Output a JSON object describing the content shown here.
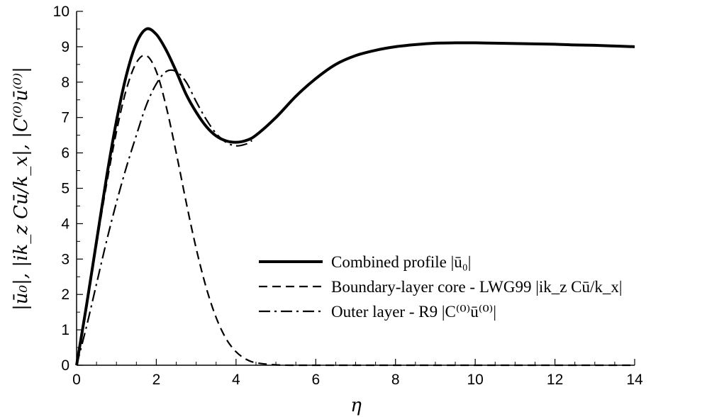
{
  "chart_data": {
    "type": "line",
    "xlabel": "η",
    "ylabel": "|ū₀|, |ik_z Cū/k_x|, |C⁽⁰⁾ū⁽⁰⁾|",
    "xlim": [
      0,
      14
    ],
    "ylim": [
      0,
      10
    ],
    "x_ticks": [
      0,
      2,
      4,
      6,
      8,
      10,
      12,
      14
    ],
    "y_ticks": [
      0,
      1,
      2,
      3,
      4,
      5,
      6,
      7,
      8,
      9,
      10
    ],
    "grid": false,
    "legend_position": "center-right",
    "series": [
      {
        "name": "Combined profile |ū₀|",
        "style": "solid-thick",
        "x": [
          0,
          0.25,
          0.5,
          0.75,
          1.0,
          1.25,
          1.5,
          1.75,
          2.0,
          2.25,
          2.5,
          2.75,
          3.0,
          3.25,
          3.5,
          3.75,
          4.0,
          4.25,
          4.5,
          5.0,
          5.5,
          6.0,
          6.5,
          7.0,
          7.5,
          8.0,
          8.5,
          9.0,
          9.5,
          10.0,
          10.5,
          11.0,
          11.5,
          12.0,
          12.5,
          13.0,
          13.5,
          14.0
        ],
        "y": [
          0,
          1.7,
          3.5,
          5.3,
          6.9,
          8.2,
          9.1,
          9.5,
          9.35,
          8.9,
          8.3,
          7.65,
          7.15,
          6.75,
          6.48,
          6.34,
          6.3,
          6.35,
          6.5,
          7.0,
          7.6,
          8.1,
          8.5,
          8.75,
          8.9,
          9.0,
          9.06,
          9.1,
          9.11,
          9.11,
          9.1,
          9.09,
          9.08,
          9.07,
          9.05,
          9.04,
          9.02,
          9.0
        ]
      },
      {
        "name": "Boundary-layer core - LWG99 |ik_z Cū/k_x|",
        "style": "dashed",
        "x": [
          0,
          0.25,
          0.5,
          0.75,
          1.0,
          1.25,
          1.5,
          1.75,
          2.0,
          2.25,
          2.5,
          2.75,
          3.0,
          3.25,
          3.5,
          3.75,
          4.0,
          4.25,
          4.5,
          5.0,
          5.5,
          6.0,
          7.0,
          8.0,
          10.0,
          12.0,
          14.0
        ],
        "y": [
          0,
          1.6,
          3.4,
          5.1,
          6.6,
          7.8,
          8.55,
          8.75,
          8.3,
          7.3,
          6.0,
          4.6,
          3.3,
          2.2,
          1.35,
          0.75,
          0.38,
          0.17,
          0.07,
          0.01,
          0,
          0,
          0,
          0,
          0,
          0,
          0
        ]
      },
      {
        "name": "Outer layer - R9 |C⁽⁰⁾ū⁽⁰⁾|",
        "style": "dash-dot",
        "x": [
          0,
          0.25,
          0.5,
          0.75,
          1.0,
          1.25,
          1.5,
          1.75,
          2.0,
          2.25,
          2.5,
          2.75,
          3.0,
          3.25,
          3.5,
          3.75,
          4.0,
          4.25,
          4.4
        ],
        "y": [
          0,
          1.1,
          2.3,
          3.5,
          4.6,
          5.6,
          6.5,
          7.35,
          7.95,
          8.3,
          8.3,
          8.0,
          7.45,
          6.95,
          6.55,
          6.3,
          6.2,
          6.25,
          6.35
        ]
      }
    ]
  }
}
